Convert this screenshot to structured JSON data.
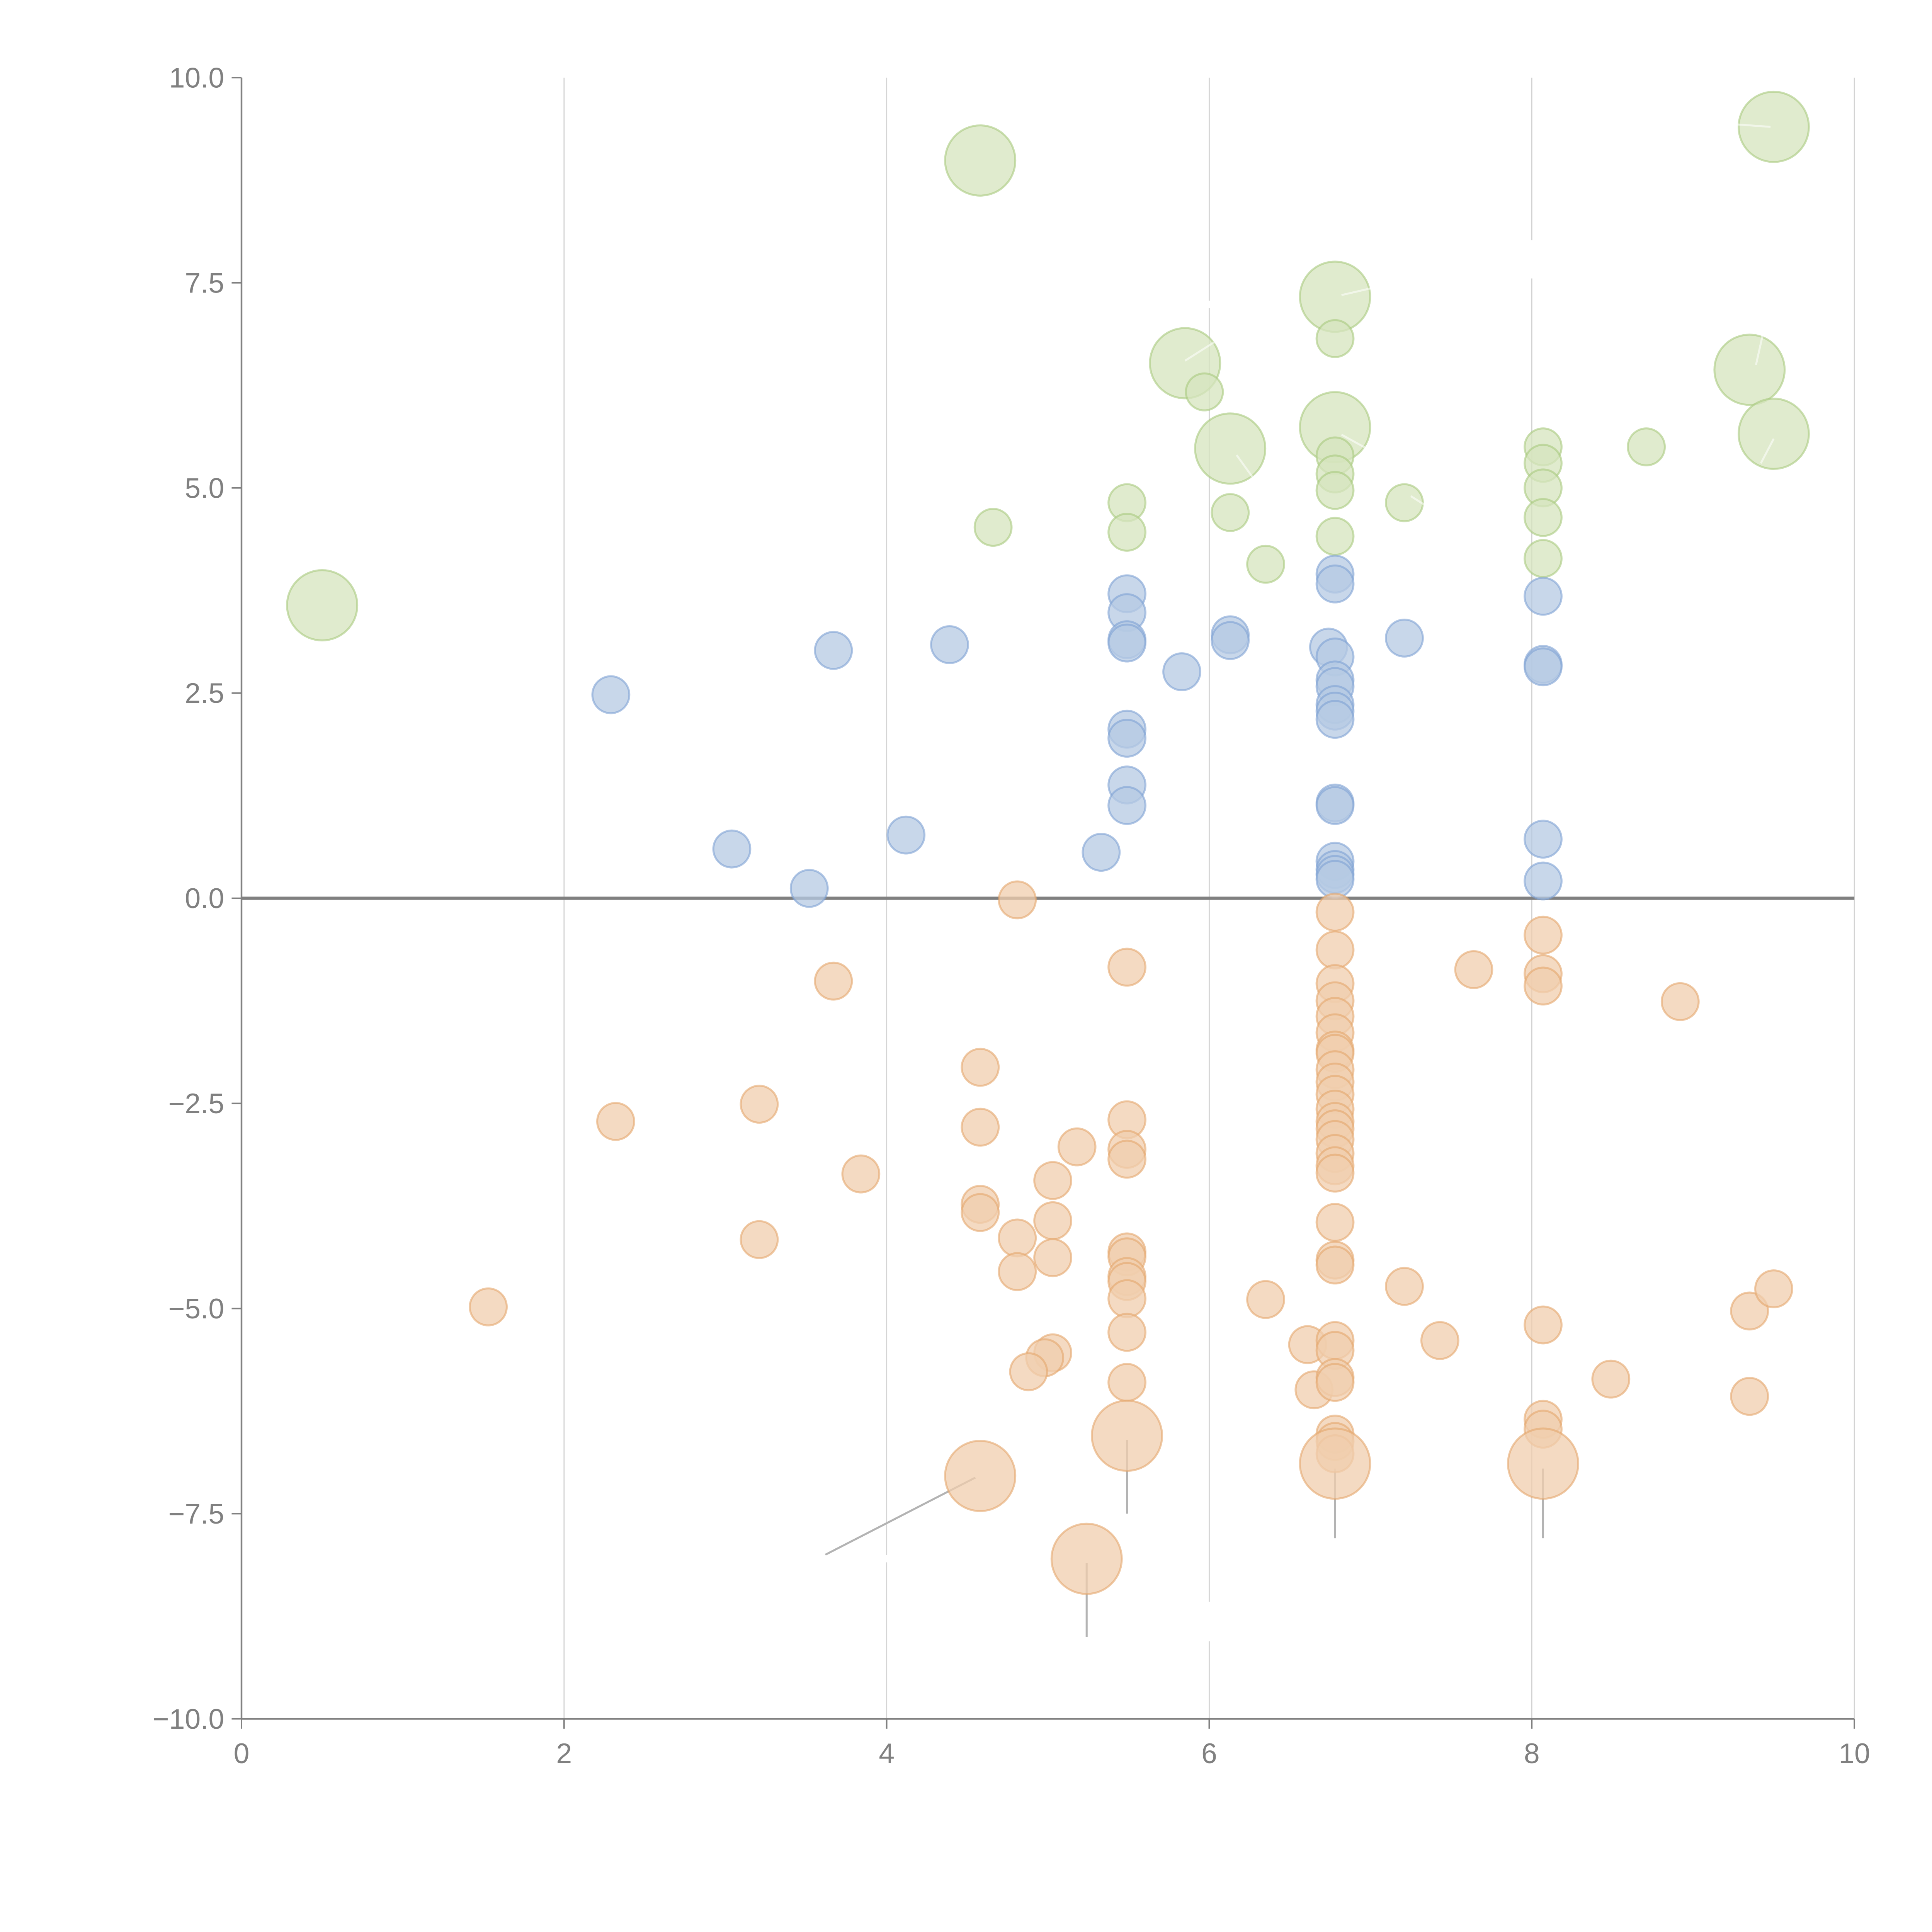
{
  "chart_data": {
    "type": "scatter",
    "subtype": "bubble",
    "title": "",
    "xlabel": "",
    "ylabel": "",
    "xlim": [
      0,
      10
    ],
    "ylim": [
      -10,
      10
    ],
    "x_ticks": [
      0,
      2,
      4,
      6,
      8,
      10
    ],
    "x_tick_labels": [
      "0",
      "2",
      "4",
      "6",
      "8",
      "10"
    ],
    "y_ticks": [
      10,
      7.5,
      5,
      2.5,
      0,
      -2.5,
      -5,
      -7.5,
      -10
    ],
    "y_tick_labels": [
      "10.0",
      "7.5",
      "5.0",
      "2.5",
      "0.0",
      "−2.5",
      "−5.0",
      "−7.5",
      "−10.0"
    ],
    "grid": "vertical",
    "zero_line": true,
    "legend": "none",
    "series": [
      {
        "name": "green",
        "color": "#a8c97f",
        "fill": "#d6e4bd",
        "points": [
          [
            0.5,
            3.57,
            4
          ],
          [
            4.58,
            8.99,
            4
          ],
          [
            4.66,
            4.52,
            1
          ],
          [
            5.49,
            4.82,
            1
          ],
          [
            5.49,
            4.46,
            1
          ],
          [
            5.85,
            6.52,
            4
          ],
          [
            5.97,
            6.17,
            1
          ],
          [
            6.13,
            5.48,
            4
          ],
          [
            6.13,
            4.7,
            1
          ],
          [
            6.35,
            4.07,
            1
          ],
          [
            6.78,
            7.33,
            4
          ],
          [
            6.78,
            6.82,
            1
          ],
          [
            6.78,
            5.74,
            4
          ],
          [
            6.78,
            5.39,
            1
          ],
          [
            6.78,
            5.17,
            1
          ],
          [
            6.78,
            4.97,
            1
          ],
          [
            6.78,
            4.41,
            1
          ],
          [
            7.21,
            4.82,
            1
          ],
          [
            8.07,
            5.5,
            1
          ],
          [
            8.07,
            5.3,
            1
          ],
          [
            8.07,
            5.0,
            1
          ],
          [
            8.07,
            4.64,
            1
          ],
          [
            8.07,
            4.14,
            1
          ],
          [
            8.71,
            5.5,
            1
          ],
          [
            9.5,
            9.4,
            4
          ],
          [
            9.35,
            6.44,
            4
          ],
          [
            9.5,
            5.66,
            4
          ]
        ]
      },
      {
        "name": "blue",
        "color": "#7ea2d3",
        "fill": "#b6c9e3",
        "points": [
          [
            2.29,
            2.48,
            1
          ],
          [
            3.67,
            3.02,
            1
          ],
          [
            4.39,
            3.09,
            1
          ],
          [
            3.04,
            0.6,
            1
          ],
          [
            3.52,
            0.12,
            1
          ],
          [
            4.12,
            0.77,
            1
          ],
          [
            5.33,
            0.56,
            1
          ],
          [
            5.49,
            3.71,
            1
          ],
          [
            5.49,
            3.48,
            1
          ],
          [
            5.49,
            3.15,
            1
          ],
          [
            5.49,
            3.11,
            1
          ],
          [
            5.49,
            2.06,
            1
          ],
          [
            5.49,
            1.95,
            1
          ],
          [
            5.49,
            1.38,
            1
          ],
          [
            5.49,
            1.13,
            1
          ],
          [
            5.83,
            2.76,
            1
          ],
          [
            6.13,
            3.21,
            1
          ],
          [
            6.13,
            3.14,
            1
          ],
          [
            6.78,
            3.95,
            1
          ],
          [
            6.78,
            3.83,
            1
          ],
          [
            6.74,
            3.06,
            1
          ],
          [
            6.78,
            2.94,
            1
          ],
          [
            6.78,
            2.66,
            1
          ],
          [
            6.78,
            2.58,
            1
          ],
          [
            6.78,
            2.36,
            1
          ],
          [
            6.78,
            2.28,
            1
          ],
          [
            6.78,
            2.18,
            1
          ],
          [
            6.78,
            1.16,
            1
          ],
          [
            6.78,
            1.13,
            1
          ],
          [
            6.78,
            0.45,
            1
          ],
          [
            6.78,
            0.35,
            1
          ],
          [
            6.78,
            0.29,
            1
          ],
          [
            6.78,
            0.23,
            1
          ],
          [
            7.21,
            3.17,
            1
          ],
          [
            8.07,
            3.68,
            1
          ],
          [
            8.07,
            2.85,
            1
          ],
          [
            8.07,
            2.82,
            1
          ],
          [
            8.07,
            0.72,
            1
          ],
          [
            8.07,
            0.21,
            1
          ]
        ]
      },
      {
        "name": "orange",
        "color": "#e5a66c",
        "fill": "#f0cdae",
        "points": [
          [
            4.81,
            -0.02,
            1
          ],
          [
            3.67,
            -1.01,
            1
          ],
          [
            5.49,
            -0.84,
            1
          ],
          [
            4.58,
            -2.06,
            1
          ],
          [
            2.32,
            -2.72,
            1
          ],
          [
            3.21,
            -2.51,
            1
          ],
          [
            4.58,
            -2.79,
            1
          ],
          [
            3.84,
            -3.36,
            1
          ],
          [
            5.18,
            -3.03,
            1
          ],
          [
            5.03,
            -3.44,
            1
          ],
          [
            4.58,
            -3.73,
            1
          ],
          [
            4.58,
            -3.83,
            1
          ],
          [
            5.03,
            -3.93,
            1
          ],
          [
            4.81,
            -4.14,
            1
          ],
          [
            3.21,
            -4.16,
            1
          ],
          [
            5.03,
            -4.38,
            1
          ],
          [
            4.81,
            -4.55,
            1
          ],
          [
            1.53,
            -4.98,
            1
          ],
          [
            5.49,
            -2.7,
            1
          ],
          [
            5.49,
            -3.06,
            1
          ],
          [
            5.49,
            -3.18,
            1
          ],
          [
            5.49,
            -4.31,
            1
          ],
          [
            5.49,
            -4.37,
            1
          ],
          [
            5.49,
            -4.61,
            1
          ],
          [
            5.49,
            -4.67,
            1
          ],
          [
            5.49,
            -4.88,
            1
          ],
          [
            5.49,
            -5.29,
            1
          ],
          [
            5.49,
            -5.9,
            1
          ],
          [
            5.03,
            -5.54,
            1
          ],
          [
            4.98,
            -5.6,
            1
          ],
          [
            4.88,
            -5.77,
            1
          ],
          [
            5.49,
            -6.55,
            4
          ],
          [
            4.58,
            -7.04,
            4
          ],
          [
            5.24,
            -8.05,
            4
          ],
          [
            6.35,
            -4.89,
            1
          ],
          [
            6.61,
            -5.44,
            1
          ],
          [
            6.65,
            -5.99,
            1
          ],
          [
            6.78,
            -0.17,
            1
          ],
          [
            6.78,
            -0.63,
            1
          ],
          [
            6.78,
            -1.04,
            1
          ],
          [
            6.78,
            -1.25,
            1
          ],
          [
            6.78,
            -1.44,
            1
          ],
          [
            6.78,
            -1.64,
            1
          ],
          [
            6.78,
            -1.85,
            1
          ],
          [
            6.78,
            -1.89,
            1
          ],
          [
            6.78,
            -2.09,
            1
          ],
          [
            6.78,
            -2.24,
            1
          ],
          [
            6.78,
            -2.39,
            1
          ],
          [
            6.78,
            -2.57,
            1
          ],
          [
            6.78,
            -2.72,
            1
          ],
          [
            6.78,
            -2.81,
            1
          ],
          [
            6.78,
            -2.94,
            1
          ],
          [
            6.78,
            -3.11,
            1
          ],
          [
            6.78,
            -3.26,
            1
          ],
          [
            6.78,
            -3.35,
            1
          ],
          [
            6.78,
            -3.95,
            1
          ],
          [
            6.78,
            -4.41,
            1
          ],
          [
            6.78,
            -4.47,
            1
          ],
          [
            6.78,
            -5.39,
            1
          ],
          [
            6.78,
            -5.51,
            1
          ],
          [
            6.78,
            -5.84,
            1
          ],
          [
            6.78,
            -5.9,
            1
          ],
          [
            6.78,
            -6.53,
            1
          ],
          [
            6.78,
            -6.62,
            1
          ],
          [
            6.78,
            -6.77,
            1
          ],
          [
            6.78,
            -6.89,
            4
          ],
          [
            7.21,
            -4.73,
            1
          ],
          [
            7.43,
            -5.39,
            1
          ],
          [
            7.64,
            -0.87,
            1
          ],
          [
            8.07,
            -0.45,
            1
          ],
          [
            8.07,
            -0.92,
            1
          ],
          [
            8.07,
            -1.07,
            1
          ],
          [
            8.07,
            -5.2,
            1
          ],
          [
            8.07,
            -6.35,
            1
          ],
          [
            8.07,
            -6.47,
            1
          ],
          [
            8.07,
            -6.89,
            4
          ],
          [
            8.49,
            -5.86,
            1
          ],
          [
            8.92,
            -1.26,
            1
          ],
          [
            9.35,
            -5.03,
            1
          ],
          [
            9.5,
            -4.76,
            1
          ],
          [
            9.35,
            -6.07,
            1
          ]
        ]
      }
    ],
    "point_format": [
      "x",
      "y",
      "size"
    ]
  }
}
